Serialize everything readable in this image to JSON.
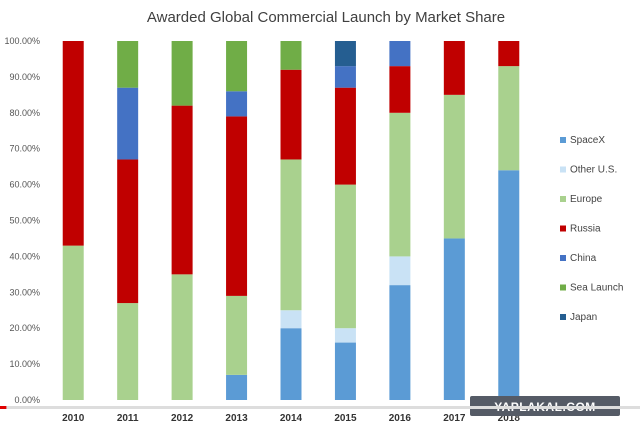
{
  "chart_data": {
    "type": "bar",
    "stacked": true,
    "title": "Awarded Global Commercial Launch by Market Share",
    "xlabel": "",
    "ylabel": "",
    "ylim": [
      0,
      100
    ],
    "y_ticks": [
      "0.00%",
      "10.00%",
      "20.00%",
      "30.00%",
      "40.00%",
      "50.00%",
      "60.00%",
      "70.00%",
      "80.00%",
      "90.00%",
      "100.00%"
    ],
    "categories": [
      "2010",
      "2011",
      "2012",
      "2013",
      "2014",
      "2015",
      "2016",
      "2017",
      "2018"
    ],
    "series": [
      {
        "name": "SpaceX",
        "color": "#5b9bd5",
        "values": [
          0,
          0,
          0,
          7,
          20,
          16,
          32,
          45,
          64
        ]
      },
      {
        "name": "Other U.S.",
        "color": "#c9e2f5",
        "values": [
          0,
          0,
          0,
          0,
          5,
          4,
          8,
          0,
          0
        ]
      },
      {
        "name": "Europe",
        "color": "#a9d18e",
        "values": [
          43,
          27,
          35,
          22,
          42,
          40,
          40,
          40,
          29
        ]
      },
      {
        "name": "Russia",
        "color": "#c00000",
        "values": [
          57,
          40,
          47,
          50,
          25,
          27,
          13,
          15,
          7
        ]
      },
      {
        "name": "China",
        "color": "#4472c4",
        "values": [
          0,
          20,
          0,
          7,
          0,
          6,
          7,
          0,
          0
        ]
      },
      {
        "name": "Sea Launch",
        "color": "#70ad47",
        "values": [
          0,
          13,
          18,
          14,
          8,
          0,
          0,
          0,
          0
        ]
      },
      {
        "name": "Japan",
        "color": "#255e91",
        "values": [
          0,
          0,
          0,
          0,
          0,
          7,
          0,
          0,
          0
        ]
      }
    ],
    "legend_position": "right",
    "grid": false
  },
  "watermark": {
    "text": "YAPLAKAL.COM"
  },
  "video_progress": 0.01
}
